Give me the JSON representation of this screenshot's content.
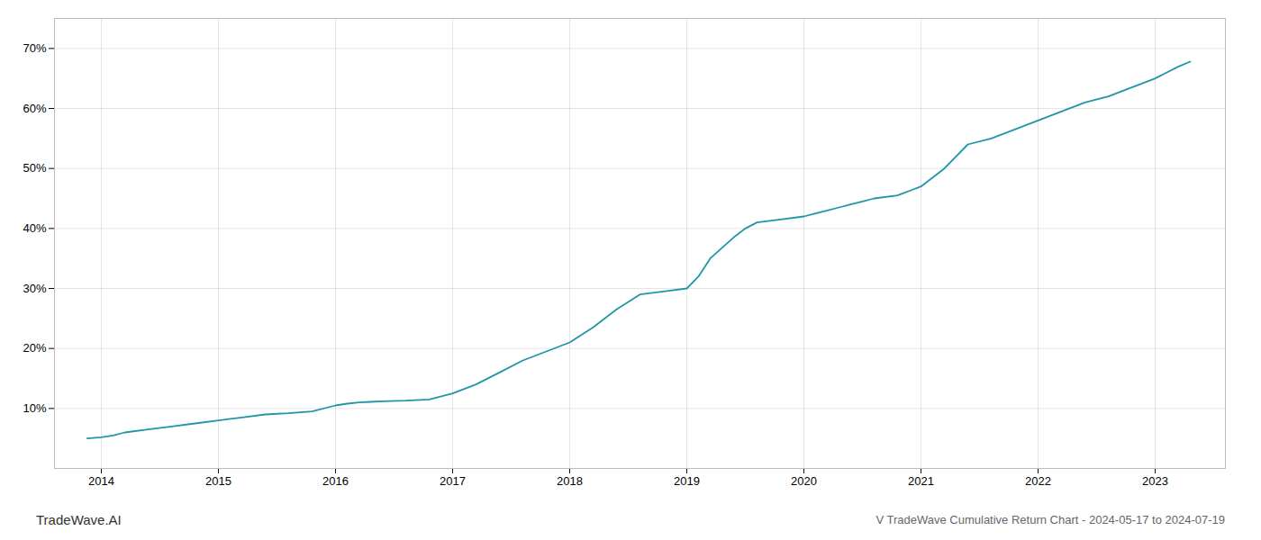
{
  "chart_data": {
    "type": "line",
    "title": "V TradeWave Cumulative Return Chart - 2024-05-17 to 2024-07-19",
    "annotations": [
      "TradeWave.AI"
    ],
    "color": "#2196a6",
    "grid": true,
    "x": [
      2013.88,
      2014.0,
      2014.1,
      2014.2,
      2014.4,
      2014.6,
      2014.8,
      2015.0,
      2015.2,
      2015.4,
      2015.6,
      2015.8,
      2016.0,
      2016.1,
      2016.2,
      2016.3,
      2016.4,
      2016.6,
      2016.8,
      2017.0,
      2017.2,
      2017.4,
      2017.6,
      2017.8,
      2018.0,
      2018.2,
      2018.4,
      2018.6,
      2018.8,
      2019.0,
      2019.1,
      2019.2,
      2019.4,
      2019.5,
      2019.6,
      2019.8,
      2020.0,
      2020.1,
      2020.2,
      2020.3,
      2020.4,
      2020.5,
      2020.6,
      2020.8,
      2021.0,
      2021.2,
      2021.4,
      2021.6,
      2021.8,
      2022.0,
      2022.2,
      2022.4,
      2022.6,
      2022.8,
      2023.0,
      2023.1,
      2023.2,
      2023.3
    ],
    "values": [
      5.0,
      5.2,
      5.5,
      6.0,
      6.5,
      7.0,
      7.5,
      8.0,
      8.5,
      9.0,
      9.2,
      9.5,
      10.5,
      10.8,
      11.0,
      11.1,
      11.2,
      11.3,
      11.5,
      12.5,
      14.0,
      16.0,
      18.0,
      19.5,
      21.0,
      23.5,
      26.5,
      29.0,
      29.5,
      30.0,
      32.0,
      35.0,
      38.5,
      40.0,
      41.0,
      41.5,
      42.0,
      42.5,
      43.0,
      43.5,
      44.0,
      44.5,
      45.0,
      45.5,
      47.0,
      50.0,
      54.0,
      55.0,
      56.5,
      58.0,
      59.5,
      61.0,
      62.0,
      63.5,
      65.0,
      66.0,
      67.0,
      67.8
    ],
    "xlim": [
      2013.6,
      2023.6
    ],
    "xticks": [
      2014,
      2015,
      2016,
      2017,
      2018,
      2019,
      2020,
      2021,
      2022,
      2023
    ],
    "ylim": [
      0,
      75
    ],
    "yticks": [
      {
        "value": 10,
        "label": "10%"
      },
      {
        "value": 20,
        "label": "20%"
      },
      {
        "value": 30,
        "label": "30%"
      },
      {
        "value": 40,
        "label": "40%"
      },
      {
        "value": 50,
        "label": "50%"
      },
      {
        "value": 60,
        "label": "60%"
      },
      {
        "value": 70,
        "label": "70%"
      }
    ]
  }
}
